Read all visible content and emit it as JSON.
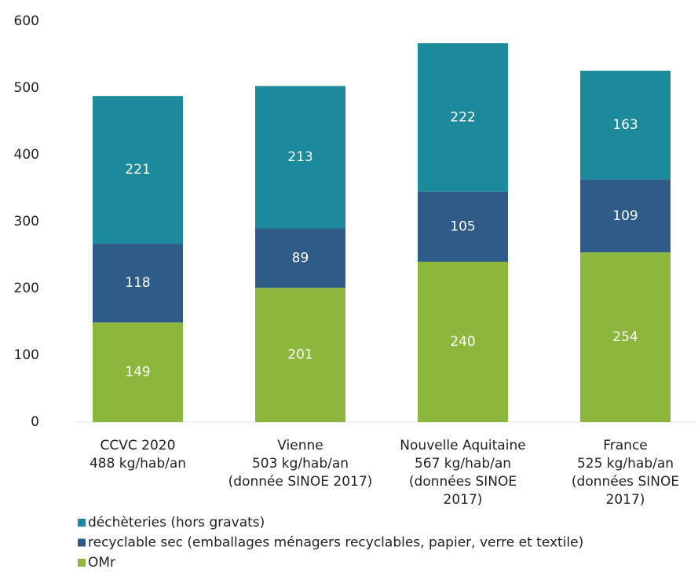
{
  "chart_data": {
    "type": "stacked_bar",
    "categories": [
      [
        "CCVC 2020",
        "488 kg/hab/an"
      ],
      [
        "Vienne",
        "503 kg/hab/an",
        "(donnée SINOE 2017)"
      ],
      [
        "Nouvelle Aquitaine",
        "567 kg/hab/an",
        "(données SINOE",
        "2017)"
      ],
      [
        "France",
        "525 kg/hab/an",
        "(données SINOE",
        "2017)"
      ]
    ],
    "series": [
      {
        "name": "OMr",
        "color": "#8db63c",
        "values": [
          149,
          201,
          240,
          254
        ]
      },
      {
        "name": "recyclable sec (emballages ménagers recyclables, papier, verre et textile)",
        "color": "#2e5b87",
        "values": [
          118,
          89,
          105,
          109
        ]
      },
      {
        "name": "déchèteries (hors gravats)",
        "color": "#1c8a9b",
        "values": [
          221,
          213,
          222,
          163
        ]
      }
    ],
    "ylim": [
      0,
      600
    ],
    "yticks": [
      0,
      100,
      200,
      300,
      400,
      500,
      600
    ],
    "grid": false,
    "legend": "bottom"
  }
}
